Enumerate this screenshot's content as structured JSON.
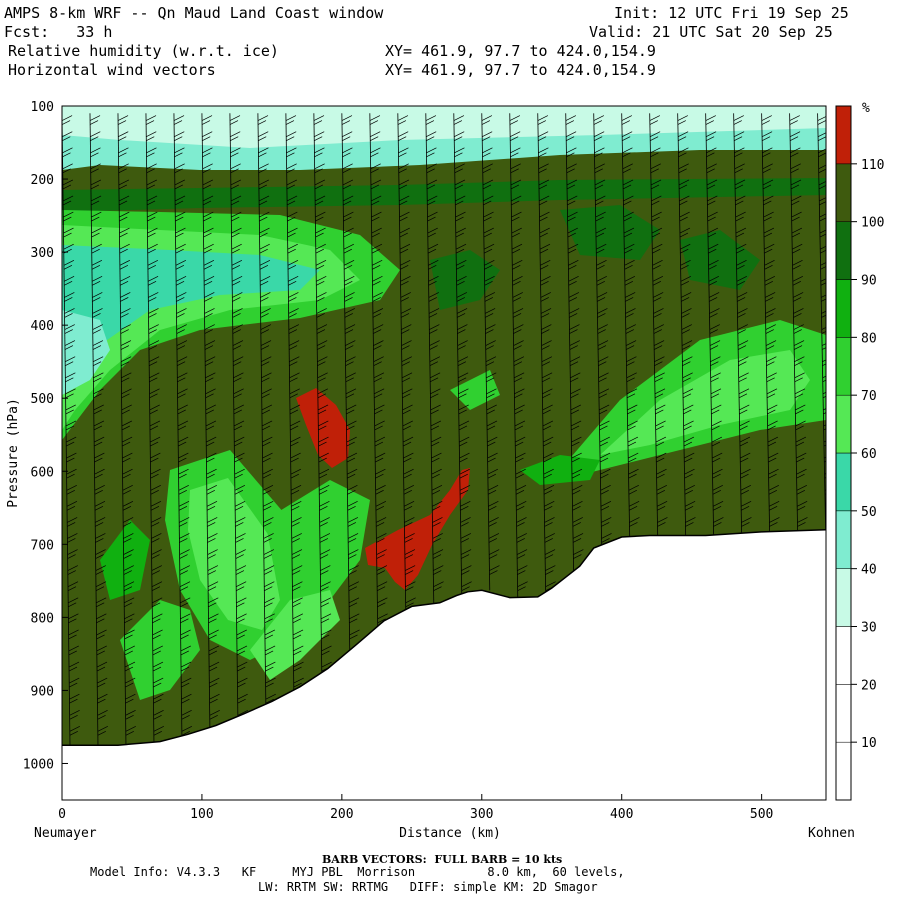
{
  "header": {
    "line1_left": "AMPS 8-km WRF -- Qn Maud Land Coast window",
    "line1_right": "Init: 12 UTC Fri 19 Sep 25",
    "line2_left": "Fcst:   33 h",
    "line2_right": "Valid: 21 UTC Sat 20 Sep 25",
    "line3_left": "Relative humidity (w.r.t. ice)",
    "line3_right": "XY= 461.9, 97.7 to 424.0,154.9",
    "line4_left": "Horizontal wind vectors",
    "line4_right": "XY= 461.9, 97.7 to 424.0,154.9"
  },
  "footer": {
    "barb_note": "BARB VECTORS:  FULL BARB = 10 kts",
    "model_info": "Model Info: V4.3.3   KF     MYJ PBL  Morrison          8.0 km,  60 levels,",
    "physics": "LW: RRTM SW: RRTMG   DIFF: simple KM: 2D Smagor"
  },
  "chart_data": {
    "type": "heatmap",
    "title": "Relative humidity (w.r.t. ice)",
    "xlabel": "Distance (km)",
    "ylabel": "Pressure (hPa)",
    "x_ticks": [
      0,
      100,
      200,
      300,
      400,
      500
    ],
    "y_ticks": [
      100,
      200,
      300,
      400,
      500,
      600,
      700,
      800,
      900,
      1000
    ],
    "xlim": [
      0,
      546
    ],
    "ylim": [
      1050,
      100
    ],
    "x_start_label": "Neumayer",
    "x_end_label": "Kohnen",
    "colorbar": {
      "unit": "%",
      "levels": [
        10,
        20,
        30,
        40,
        50,
        60,
        70,
        80,
        90,
        100,
        110
      ],
      "colors": [
        "#ffffff",
        "#ffffff",
        "#ffffff",
        "#c8fae6",
        "#7fecd0",
        "#3ad8a8",
        "#55e855",
        "#30d030",
        "#10b010",
        "#107010",
        "#3e5a0e",
        "#c02008"
      ]
    },
    "terrain_surface_hPa": {
      "x": [
        0,
        40,
        70,
        90,
        110,
        130,
        150,
        170,
        190,
        210,
        230,
        250,
        270,
        282,
        290,
        300,
        320,
        340,
        350,
        360,
        370,
        380,
        400,
        420,
        460,
        500,
        546
      ],
      "p": [
        975,
        975,
        970,
        960,
        948,
        932,
        915,
        895,
        870,
        838,
        805,
        785,
        780,
        770,
        765,
        763,
        773,
        772,
        760,
        745,
        730,
        705,
        690,
        688,
        688,
        683,
        680
      ]
    },
    "wind_barb_columns_km": [
      0,
      20,
      40,
      60,
      80,
      100,
      120,
      140,
      160,
      180,
      200,
      220,
      240,
      260,
      280,
      300,
      320,
      340,
      360,
      380,
      400,
      420,
      440,
      460,
      480,
      500,
      520,
      540
    ]
  }
}
